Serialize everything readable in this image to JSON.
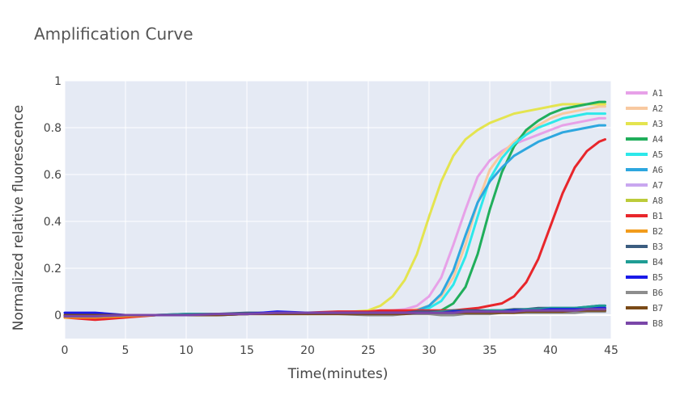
{
  "chart_data": {
    "type": "line",
    "title": "Amplification Curve",
    "xlabel": "Time(minutes)",
    "ylabel": "Normalized relative fluorescence",
    "xlim": [
      0,
      45
    ],
    "ylim": [
      -0.1,
      1
    ],
    "x_ticks": [
      0,
      5,
      10,
      15,
      20,
      25,
      30,
      35,
      40,
      45
    ],
    "y_ticks": [
      0,
      0.2,
      0.4,
      0.6,
      0.8,
      1
    ],
    "y_tick_labels": [
      "0",
      "0.2",
      "0.4",
      "0.6",
      "0.8",
      "1"
    ],
    "grid": true,
    "legend_position": "right",
    "x": [
      0,
      2.5,
      5,
      7.5,
      10,
      12.5,
      15,
      17.5,
      20,
      22.5,
      25,
      26,
      27,
      28,
      29,
      30,
      31,
      32,
      33,
      34,
      35,
      36,
      37,
      38,
      39,
      40,
      41,
      42,
      43,
      44,
      44.5
    ],
    "series": [
      {
        "name": "A1",
        "color": "#e7a1e8",
        "values": [
          -0.01,
          -0.01,
          -0.005,
          0,
          0,
          0.005,
          0.005,
          0.01,
          0.01,
          0.01,
          0.015,
          0.015,
          0.02,
          0.025,
          0.04,
          0.08,
          0.16,
          0.3,
          0.45,
          0.59,
          0.66,
          0.7,
          0.73,
          0.75,
          0.77,
          0.79,
          0.81,
          0.82,
          0.83,
          0.84,
          0.84
        ]
      },
      {
        "name": "A2",
        "color": "#f8c9a0",
        "values": [
          -0.01,
          -0.01,
          -0.005,
          0,
          0,
          0.005,
          0.005,
          0.01,
          0.01,
          0.01,
          0.015,
          0.015,
          0.015,
          0.02,
          0.025,
          0.04,
          0.08,
          0.16,
          0.3,
          0.48,
          0.62,
          0.69,
          0.74,
          0.78,
          0.81,
          0.84,
          0.86,
          0.87,
          0.88,
          0.89,
          0.89
        ]
      },
      {
        "name": "A3",
        "color": "#e4e44f",
        "values": [
          -0.01,
          -0.01,
          -0.005,
          0,
          0,
          0.005,
          0.005,
          0.01,
          0.01,
          0.01,
          0.02,
          0.04,
          0.08,
          0.15,
          0.26,
          0.42,
          0.57,
          0.68,
          0.75,
          0.79,
          0.82,
          0.84,
          0.86,
          0.87,
          0.88,
          0.89,
          0.9,
          0.9,
          0.9,
          0.9,
          0.9
        ]
      },
      {
        "name": "A4",
        "color": "#20ae5b",
        "values": [
          -0.01,
          -0.01,
          -0.005,
          0,
          0,
          0.005,
          0.005,
          0.01,
          0.01,
          0.01,
          0.01,
          0.01,
          0.01,
          0.01,
          0.01,
          0.015,
          0.02,
          0.05,
          0.12,
          0.26,
          0.45,
          0.61,
          0.72,
          0.79,
          0.83,
          0.86,
          0.88,
          0.89,
          0.9,
          0.91,
          0.91
        ]
      },
      {
        "name": "A5",
        "color": "#2de8ea",
        "values": [
          -0.01,
          -0.01,
          -0.005,
          0,
          0,
          0.005,
          0.005,
          0.01,
          0.01,
          0.01,
          0.01,
          0.01,
          0.01,
          0.015,
          0.02,
          0.03,
          0.06,
          0.13,
          0.25,
          0.42,
          0.58,
          0.67,
          0.73,
          0.77,
          0.8,
          0.82,
          0.84,
          0.85,
          0.86,
          0.86,
          0.86
        ]
      },
      {
        "name": "A6",
        "color": "#2ea7df",
        "values": [
          -0.01,
          -0.01,
          -0.005,
          0,
          0,
          0.005,
          0.005,
          0.01,
          0.01,
          0.01,
          0.01,
          0.01,
          0.01,
          0.015,
          0.02,
          0.04,
          0.09,
          0.19,
          0.34,
          0.48,
          0.57,
          0.63,
          0.68,
          0.71,
          0.74,
          0.76,
          0.78,
          0.79,
          0.8,
          0.81,
          0.81
        ]
      },
      {
        "name": "A7",
        "color": "#c9a7f0",
        "values": [
          -0.01,
          -0.01,
          -0.005,
          0,
          0,
          0.005,
          0.005,
          0.01,
          0.01,
          0.01,
          0.01,
          0.01,
          0.01,
          0.01,
          0.01,
          0.01,
          0.01,
          0.01,
          0.01,
          0.01,
          0.01,
          0.015,
          0.015,
          0.015,
          0.015,
          0.02,
          0.02,
          0.02,
          0.02,
          0.02,
          0.02
        ]
      },
      {
        "name": "A8",
        "color": "#bccb3a",
        "values": [
          -0.01,
          -0.01,
          -0.005,
          0,
          0,
          0.005,
          0.005,
          0.01,
          0.01,
          0.01,
          0.01,
          0.01,
          0.01,
          0.01,
          0.01,
          0.01,
          0.01,
          0.01,
          0.01,
          0.01,
          0.015,
          0.015,
          0.015,
          0.015,
          0.02,
          0.02,
          0.02,
          0.02,
          0.02,
          0.025,
          0.025
        ]
      },
      {
        "name": "B1",
        "color": "#e8262b",
        "values": [
          -0.01,
          -0.02,
          -0.01,
          0,
          0,
          0.005,
          0.005,
          0.01,
          0.01,
          0.015,
          0.015,
          0.02,
          0.02,
          0.02,
          0.02,
          0.02,
          0.02,
          0.02,
          0.025,
          0.03,
          0.04,
          0.05,
          0.08,
          0.14,
          0.24,
          0.38,
          0.52,
          0.63,
          0.7,
          0.74,
          0.75
        ]
      },
      {
        "name": "B2",
        "color": "#f29c1c",
        "values": [
          -0.01,
          -0.01,
          -0.005,
          0,
          0,
          0.005,
          0.005,
          0.01,
          0.01,
          0.01,
          0.01,
          0.01,
          0.01,
          0.01,
          0.01,
          0.01,
          0.01,
          0.01,
          0.01,
          0.01,
          0.015,
          0.015,
          0.015,
          0.015,
          0.02,
          0.02,
          0.02,
          0.02,
          0.02,
          0.025,
          0.025
        ]
      },
      {
        "name": "B3",
        "color": "#3b5d80",
        "values": [
          0,
          0,
          0,
          0,
          0.005,
          0.005,
          0.01,
          0.01,
          0.01,
          0.01,
          0.01,
          0.01,
          0.01,
          0.01,
          0.015,
          0.015,
          0.015,
          0.02,
          0.02,
          0.02,
          0.02,
          0.02,
          0.025,
          0.025,
          0.03,
          0.03,
          0.03,
          0.03,
          0.035,
          0.04,
          0.04
        ]
      },
      {
        "name": "B4",
        "color": "#1f9d94",
        "values": [
          -0.005,
          -0.005,
          0,
          0,
          0.005,
          0.005,
          0.005,
          0.01,
          0.01,
          0.01,
          0.01,
          0.01,
          0.01,
          0.01,
          0.01,
          0.01,
          0.015,
          0.015,
          0.015,
          0.015,
          0.02,
          0.02,
          0.02,
          0.025,
          0.025,
          0.03,
          0.03,
          0.03,
          0.035,
          0.04,
          0.04
        ]
      },
      {
        "name": "B5",
        "color": "#1a1ae8",
        "values": [
          0.01,
          0.01,
          0,
          0,
          0,
          0,
          0.005,
          0.015,
          0.01,
          0.01,
          0.01,
          0.01,
          0.01,
          0.01,
          0.01,
          0.01,
          0.01,
          0.015,
          0.015,
          0.015,
          0.015,
          0.015,
          0.02,
          0.02,
          0.02,
          0.025,
          0.025,
          0.025,
          0.025,
          0.03,
          0.03
        ]
      },
      {
        "name": "B6",
        "color": "#8d8d8d",
        "values": [
          -0.005,
          -0.005,
          0,
          0,
          0,
          0,
          0.005,
          0.005,
          0.005,
          0.005,
          0,
          0,
          0,
          0.005,
          0.005,
          0.005,
          0,
          0,
          0.005,
          0.005,
          0.005,
          0.01,
          0.01,
          0.01,
          0.01,
          0.01,
          0.01,
          0.01,
          0.015,
          0.015,
          0.015
        ]
      },
      {
        "name": "B7",
        "color": "#7a4a17",
        "values": [
          0,
          0,
          0,
          0,
          0,
          0,
          0.005,
          0.005,
          0.005,
          0.005,
          0.005,
          0.005,
          0.005,
          0.005,
          0.01,
          0.01,
          0.01,
          0.01,
          0.01,
          0.01,
          0.01,
          0.01,
          0.01,
          0.015,
          0.015,
          0.015,
          0.015,
          0.02,
          0.02,
          0.02,
          0.02
        ]
      },
      {
        "name": "B8",
        "color": "#7a46a8",
        "values": [
          -0.005,
          -0.005,
          0,
          0,
          0,
          0.005,
          0.005,
          0.01,
          0.01,
          0.01,
          0.01,
          0.01,
          0.01,
          0.01,
          0.01,
          0.01,
          0.01,
          0.01,
          0.015,
          0.015,
          0.015,
          0.015,
          0.015,
          0.02,
          0.02,
          0.02,
          0.02,
          0.02,
          0.025,
          0.025,
          0.025
        ]
      }
    ]
  }
}
